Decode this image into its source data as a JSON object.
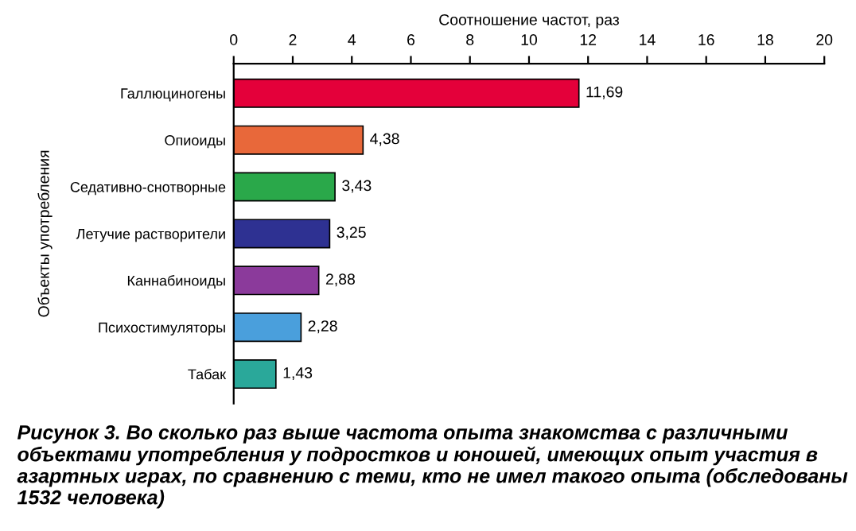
{
  "chart_data": {
    "type": "bar",
    "orientation": "horizontal",
    "xlabel": "Соотношение частот, раз",
    "ylabel": "Объекты употребления",
    "categories": [
      "Галлюциногены",
      "Опиоиды",
      "Седативно-снотворные",
      "Летучие растворители",
      "Каннабиноиды",
      "Психостимуляторы",
      "Табак"
    ],
    "values": [
      11.69,
      4.38,
      3.43,
      3.25,
      2.88,
      2.28,
      1.43
    ],
    "value_labels": [
      "11,69",
      "4,38",
      "3,43",
      "3,25",
      "2,88",
      "2,28",
      "1,43"
    ],
    "colors": [
      "#e4003a",
      "#e8683a",
      "#2aa84a",
      "#2e3192",
      "#8b3a9b",
      "#4a9fdc",
      "#2aa89a"
    ],
    "xlim": [
      0,
      20
    ],
    "xticks": [
      0,
      2,
      4,
      6,
      8,
      10,
      12,
      14,
      16,
      18,
      20
    ],
    "grid": false,
    "annotations": [
      "Рисунок 3. Во сколько раз выше частота опыта знакомства с различными объектами употребления у подростков и юношей, имеющих опыт участия в азартных играх, по сравнению с теми, кто не имел такого опыта (обследованы 1532 человека)"
    ]
  }
}
